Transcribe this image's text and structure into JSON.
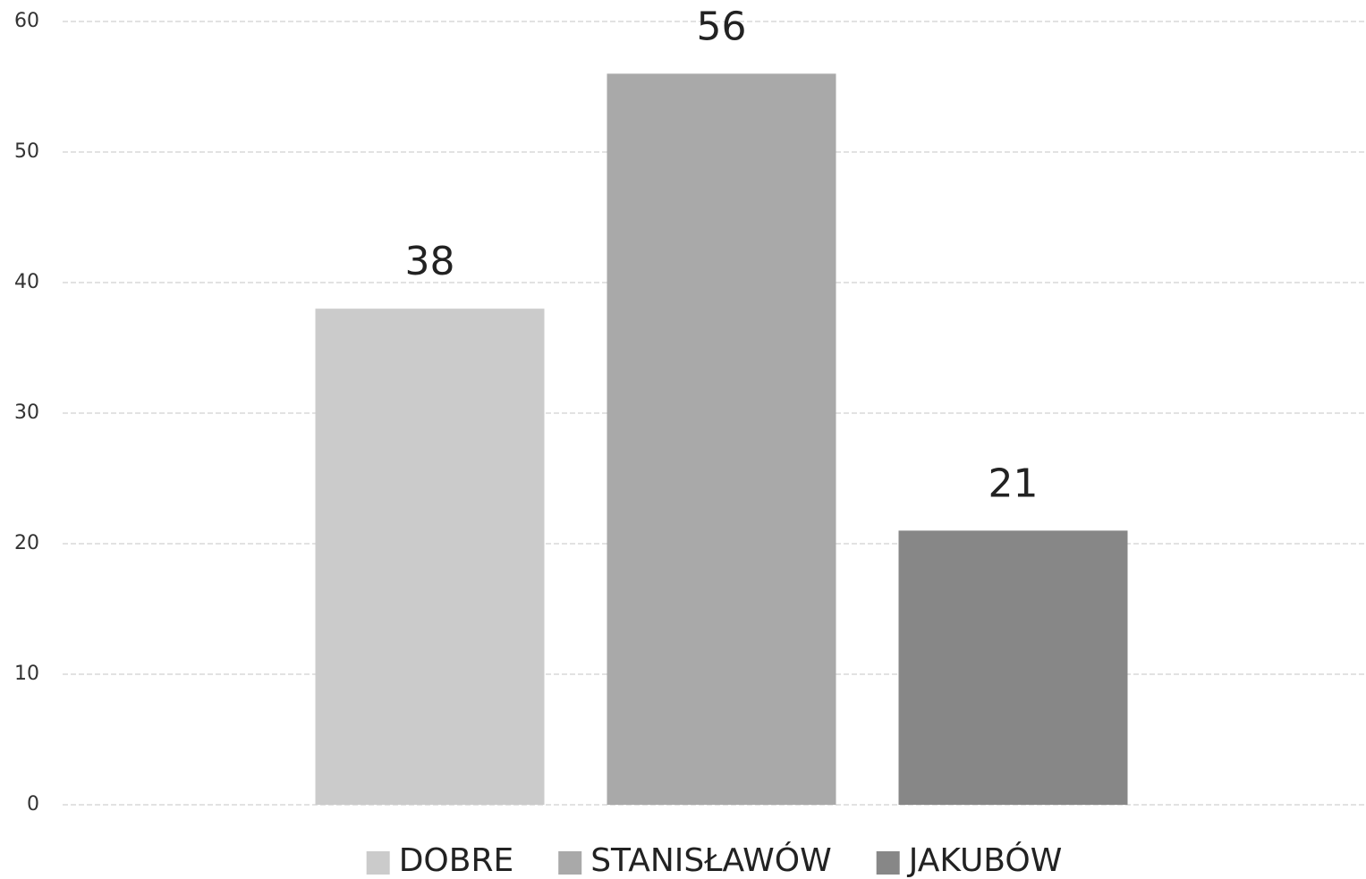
{
  "chart_data": {
    "type": "bar",
    "categories": [
      null
    ],
    "series": [
      {
        "name": "DOBRE",
        "color": "#cbcbcb",
        "values": [
          38
        ]
      },
      {
        "name": "STANISŁAWÓW",
        "color": "#a9a9a9",
        "values": [
          56
        ]
      },
      {
        "name": "JAKUBÓW",
        "color": "#878787",
        "values": [
          21
        ]
      }
    ],
    "ylim": [
      0,
      60
    ],
    "yticks": [
      0,
      10,
      20,
      30,
      40,
      50,
      60
    ],
    "grid": true,
    "legend": "bottom"
  }
}
